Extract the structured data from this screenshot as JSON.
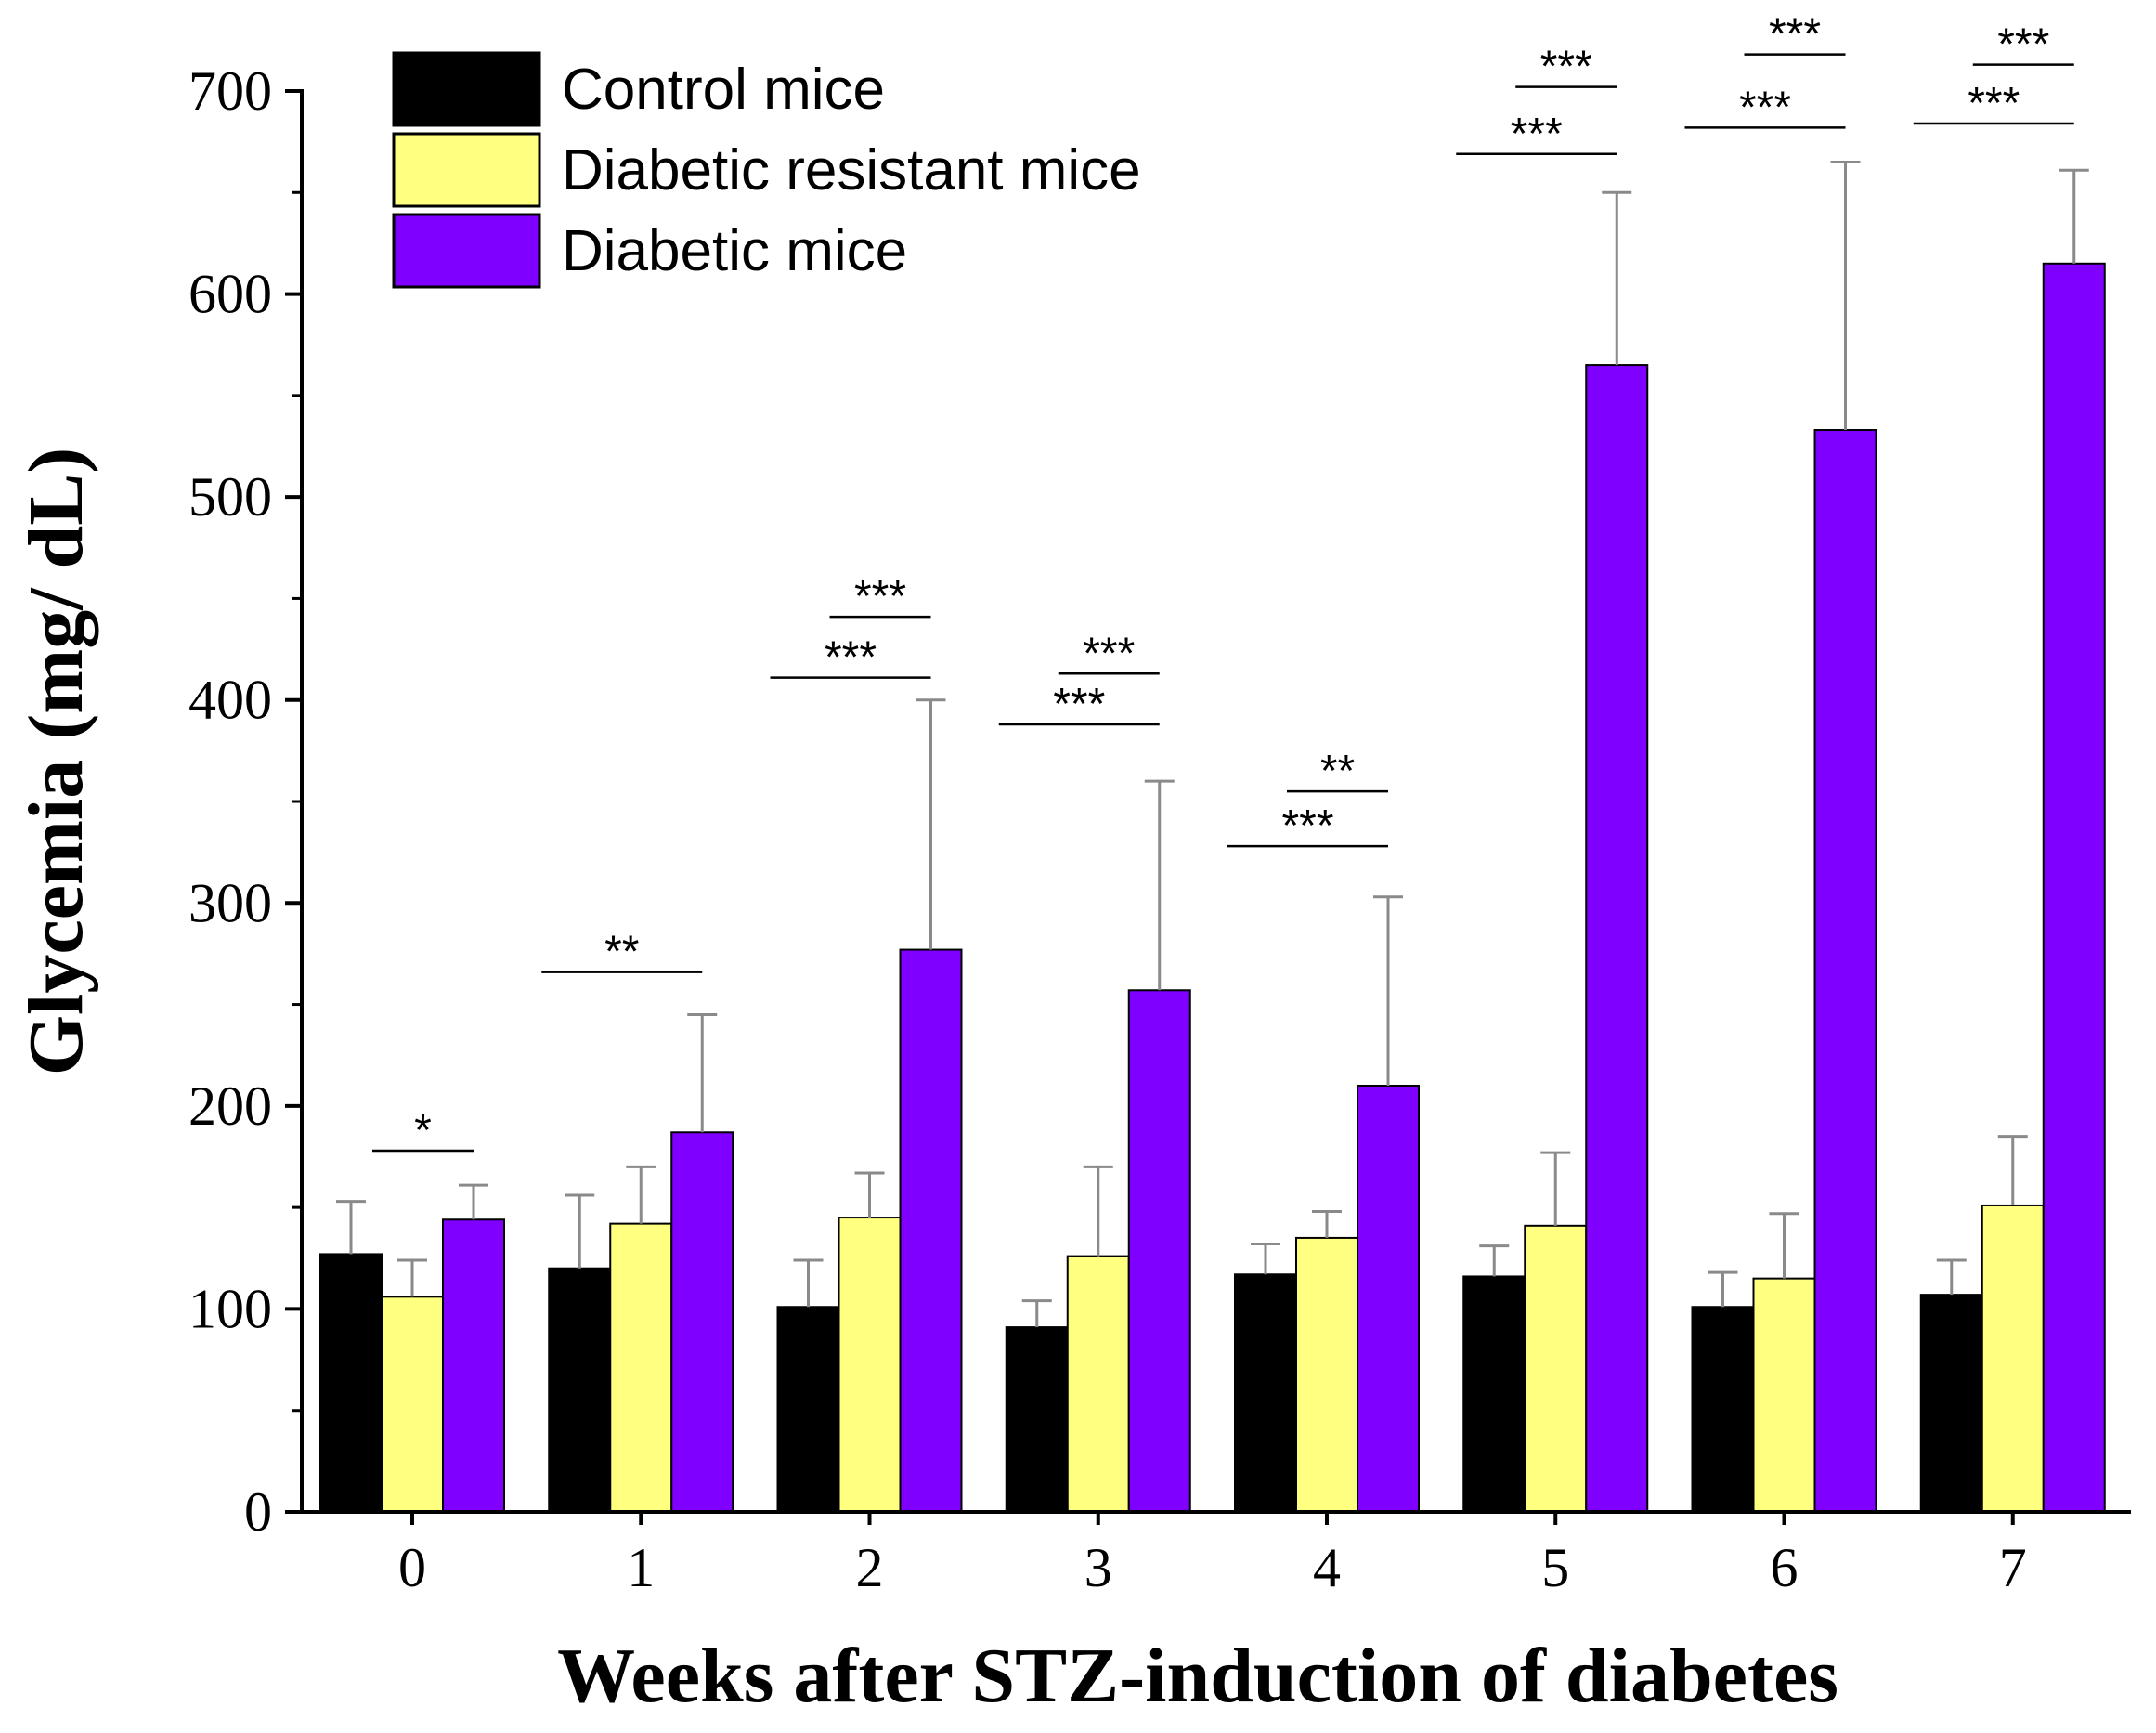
{
  "chart_data": {
    "type": "bar",
    "title": "",
    "xlabel": "Weeks after STZ-induction of diabetes",
    "ylabel": "Glycemia (mg/ dL)",
    "ylim": [
      0,
      700
    ],
    "yticks": [
      "0",
      "100",
      "200",
      "300",
      "400",
      "500",
      "600",
      "700"
    ],
    "categories": [
      "0",
      "1",
      "2",
      "3",
      "4",
      "5",
      "6",
      "7"
    ],
    "legend_position": "top-left",
    "series": [
      {
        "name": "Control mice",
        "color": "#000000",
        "values": [
          127,
          120,
          101,
          91,
          117,
          116,
          101,
          107
        ],
        "errors": [
          26,
          36,
          23,
          13,
          15,
          15,
          17,
          17
        ]
      },
      {
        "name": "Diabetic resistant mice",
        "color": "#ffff80",
        "values": [
          106,
          142,
          145,
          126,
          135,
          141,
          115,
          151
        ],
        "errors": [
          18,
          28,
          22,
          44,
          13,
          36,
          32,
          34
        ]
      },
      {
        "name": "Diabetic mice",
        "color": "#8000ff",
        "values": [
          144,
          187,
          277,
          257,
          210,
          565,
          533,
          615
        ],
        "errors": [
          17,
          58,
          123,
          103,
          93,
          85,
          132,
          46
        ]
      }
    ],
    "significance": [
      {
        "category": 0,
        "from": 1,
        "to": 2,
        "label": "*",
        "y": 178
      },
      {
        "category": 1,
        "from": 0,
        "to": 2,
        "label": "**",
        "y": 266
      },
      {
        "category": 2,
        "from": 0,
        "to": 2,
        "label": "***",
        "y": 411
      },
      {
        "category": 2,
        "from": 1,
        "to": 2,
        "label": "***",
        "y": 441
      },
      {
        "category": 3,
        "from": 0,
        "to": 2,
        "label": "***",
        "y": 388
      },
      {
        "category": 3,
        "from": 1,
        "to": 2,
        "label": "***",
        "y": 413
      },
      {
        "category": 4,
        "from": 0,
        "to": 2,
        "label": "***",
        "y": 328
      },
      {
        "category": 4,
        "from": 1,
        "to": 2,
        "label": "**",
        "y": 355
      },
      {
        "category": 5,
        "from": 0,
        "to": 2,
        "label": "***",
        "y": 669
      },
      {
        "category": 5,
        "from": 1,
        "to": 2,
        "label": "***",
        "y": 702
      },
      {
        "category": 6,
        "from": 0,
        "to": 2,
        "label": "***",
        "y": 682
      },
      {
        "category": 6,
        "from": 1,
        "to": 2,
        "label": "***",
        "y": 718
      },
      {
        "category": 7,
        "from": 0,
        "to": 2,
        "label": "***",
        "y": 684
      },
      {
        "category": 7,
        "from": 1,
        "to": 2,
        "label": "***",
        "y": 713
      }
    ]
  }
}
